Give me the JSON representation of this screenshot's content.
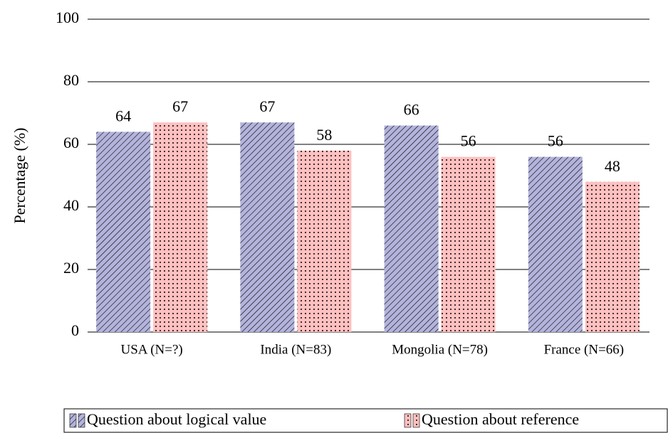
{
  "chart_data": {
    "type": "bar",
    "ylabel": "Percentage (%)",
    "categories": [
      "USA (N=?)",
      "India (N=83)",
      "Mongolia (N=78)",
      "France (N=66)"
    ],
    "series": [
      {
        "name": "Question about logical value",
        "color": "#b3b3dc",
        "pattern": "hatch",
        "values": [
          64,
          67,
          66,
          56
        ]
      },
      {
        "name": "Question about reference",
        "color": "#ffc0c0",
        "pattern": "dots",
        "values": [
          67,
          58,
          56,
          48
        ]
      }
    ],
    "ylim": [
      0,
      100
    ],
    "yticks": [
      0,
      20,
      40,
      60,
      80,
      100
    ],
    "grid": true,
    "legend": "bottom"
  }
}
